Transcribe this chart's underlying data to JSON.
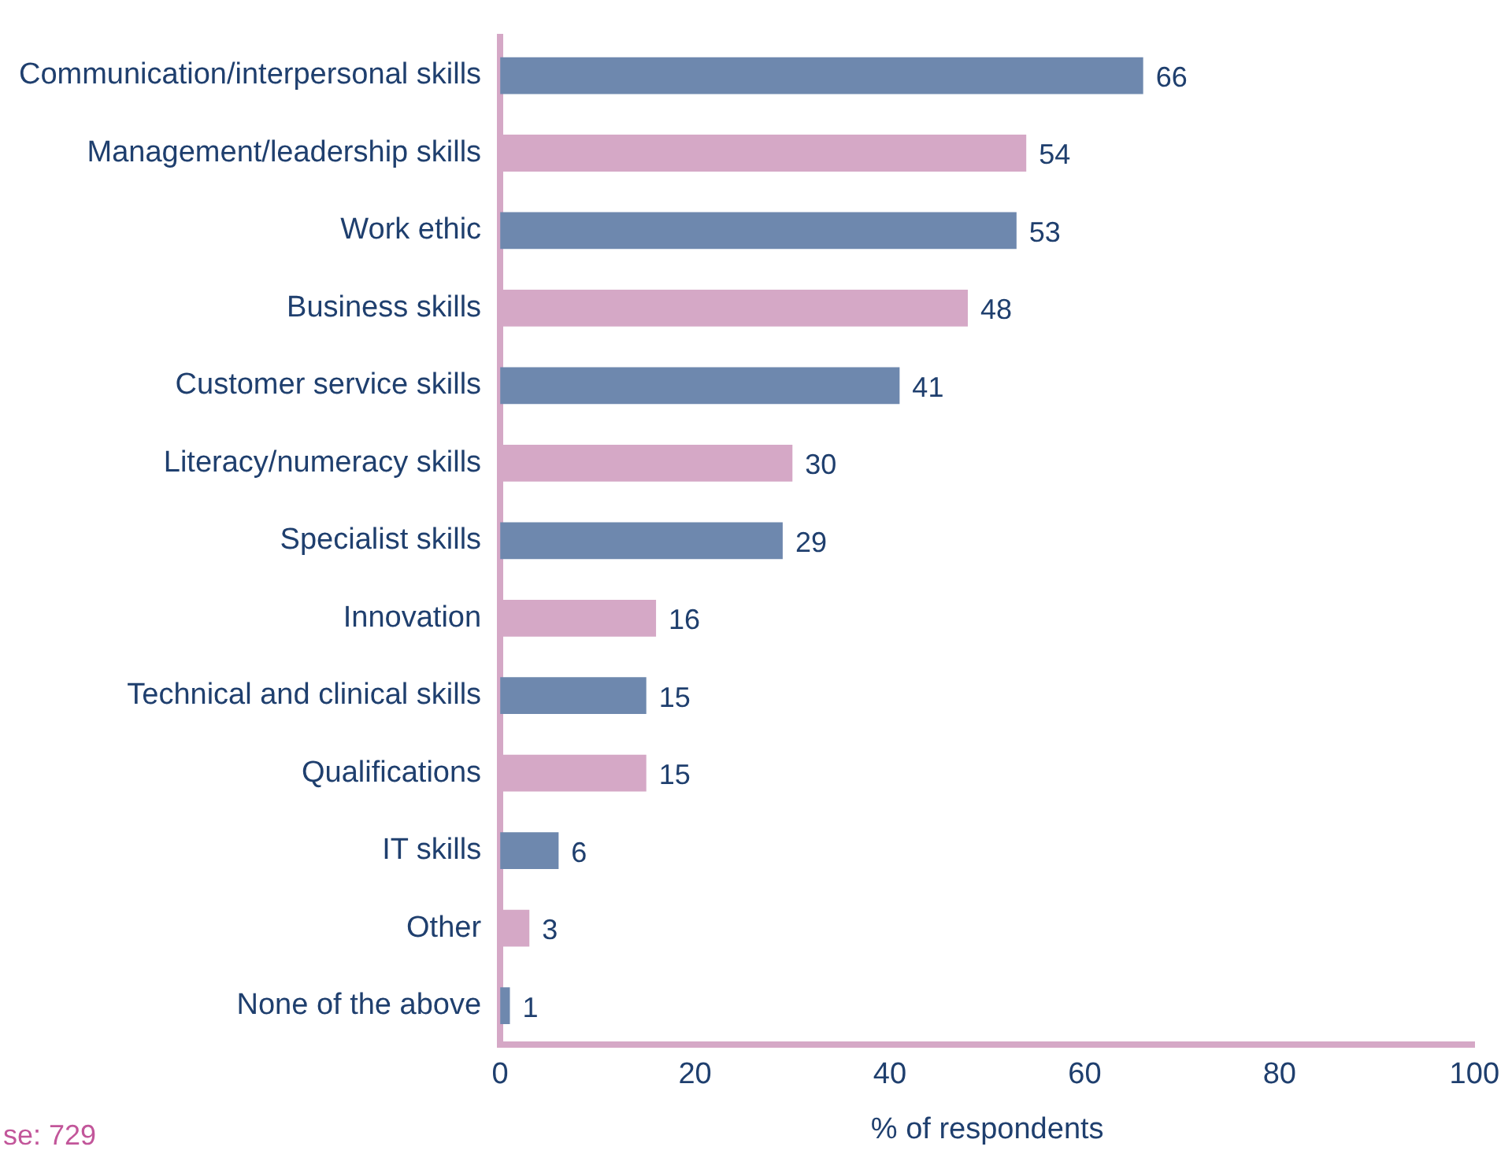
{
  "chart_data": {
    "type": "bar",
    "orientation": "horizontal",
    "categories": [
      "Communication/interpersonal skills",
      "Management/leadership skills",
      "Work ethic",
      "Business skills",
      "Customer service skills",
      "Literacy/numeracy skills",
      "Specialist skills",
      "Innovation",
      "Technical and clinical skills",
      "Qualifications",
      "IT skills",
      "Other",
      "None of the above"
    ],
    "values": [
      66,
      54,
      53,
      48,
      41,
      30,
      29,
      16,
      15,
      15,
      6,
      3,
      1
    ],
    "colors": [
      "#6e88ae",
      "#d5a8c6",
      "#6e88ae",
      "#d5a8c6",
      "#6e88ae",
      "#d5a8c6",
      "#6e88ae",
      "#d5a8c6",
      "#6e88ae",
      "#d5a8c6",
      "#6e88ae",
      "#d5a8c6",
      "#6e88ae"
    ],
    "xlim": [
      0,
      100
    ],
    "xticks": [
      0,
      20,
      40,
      60,
      80,
      100
    ],
    "xlabel": "% of respondents",
    "data_labels": true,
    "grid": false,
    "legend": false,
    "annotations": [
      "se: 729"
    ]
  }
}
